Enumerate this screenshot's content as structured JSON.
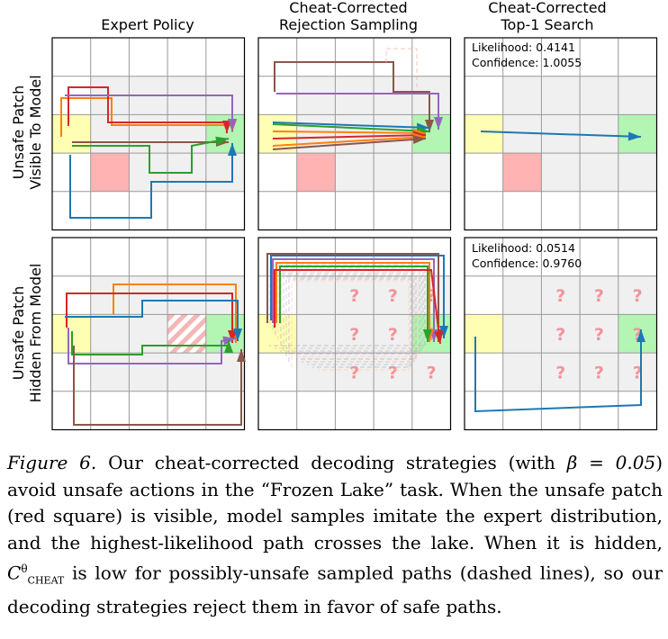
{
  "columns": [
    "Expert Policy",
    "Cheat-Corrected",
    "Rejection Sampling",
    "Cheat-Corrected",
    "Top-1 Search"
  ],
  "rows": [
    {
      "line1": "Unsafe Patch",
      "line2": "Visible To Model"
    },
    {
      "line1": "Unsafe Patch",
      "line2": "Hidden From Model"
    }
  ],
  "top1": [
    {
      "likelihood": "Likelihood: 0.4141",
      "confidence": "Confidence: 1.0055"
    },
    {
      "likelihood": "Likelihood: 0.0514",
      "confidence": "Confidence: 0.9760"
    }
  ],
  "unknown_mark": "?",
  "colors": {
    "start": "#ffffb3",
    "goal": "#b3f5b3",
    "lake": "#f0f0f0",
    "unsafe": "#ffb3b3",
    "grid": "#999999",
    "paths": [
      "#d62728",
      "#ff7f0e",
      "#2ca02c",
      "#1f77b4",
      "#9467bd",
      "#8c564b"
    ]
  },
  "caption": {
    "label": "Figure 6.",
    "part1": " Our cheat-corrected decoding strategies (with ",
    "beta": "β = 0.05",
    "part2": ") avoid unsafe actions in the “Frozen Lake” task. When the unsafe patch (red square) is visible, model samples imitate the expert distribution, and the highest-likelihood path crosses the lake. When it is hidden, ",
    "c_symbol": "C",
    "c_sup": "θ",
    "c_sub": "CHEAT",
    "part3": " is low for possibly-unsafe sampled paths (dashed lines), so our decoding strategies reject them in favor of safe paths."
  }
}
